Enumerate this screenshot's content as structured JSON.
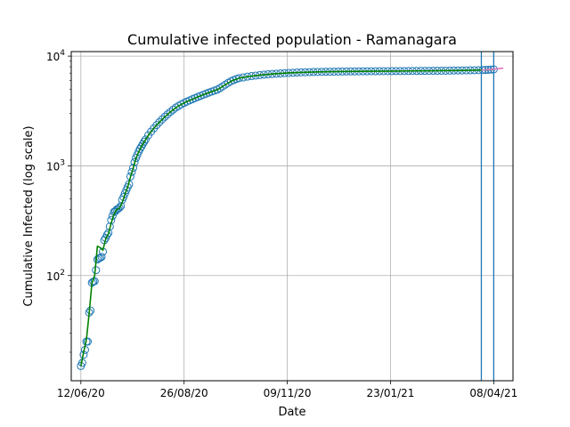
{
  "chart_data": {
    "type": "scatter",
    "title": "Cumulative infected population - Ramanagara",
    "xlabel": "Date",
    "ylabel": "Cumulative Infected (log scale)",
    "x_axis": {
      "kind": "date",
      "range": [
        "2020-06-05",
        "2021-04-22"
      ]
    },
    "y_axis": {
      "scale": "log",
      "range": [
        11,
        11000
      ]
    },
    "grid": true,
    "xticks": [
      {
        "date": "2020-06-12",
        "label": "12/06/20"
      },
      {
        "date": "2020-08-26",
        "label": "26/08/20"
      },
      {
        "date": "2020-11-09",
        "label": "09/11/20"
      },
      {
        "date": "2021-01-23",
        "label": "23/01/21"
      },
      {
        "date": "2021-04-08",
        "label": "08/04/21"
      }
    ],
    "yticks": [
      {
        "value": 100,
        "base": "10",
        "exp": "2"
      },
      {
        "value": 1000,
        "base": "10",
        "exp": "3"
      },
      {
        "value": 10000,
        "base": "10",
        "exp": "4"
      }
    ],
    "vlines": [
      {
        "date": "2021-03-30",
        "color": "#1f77b4"
      },
      {
        "date": "2021-04-08",
        "color": "#1f77b4"
      }
    ],
    "colors": {
      "observed": "#1f77b4",
      "fitted": "#008000",
      "forecast": "#e377c2"
    },
    "series": [
      {
        "role": "observed",
        "mark": "hollow-circle",
        "points": [
          [
            "2020-06-12",
            15
          ],
          [
            "2020-06-13",
            16
          ],
          [
            "2020-06-14",
            19
          ],
          [
            "2020-06-15",
            21
          ],
          [
            "2020-06-16",
            25
          ],
          [
            "2020-06-17",
            25
          ],
          [
            "2020-06-18",
            46
          ],
          [
            "2020-06-19",
            48
          ],
          [
            "2020-06-20",
            86
          ],
          [
            "2020-06-21",
            88
          ],
          [
            "2020-06-22",
            89
          ],
          [
            "2020-06-23",
            112
          ],
          [
            "2020-06-24",
            140
          ],
          [
            "2020-06-25",
            143
          ],
          [
            "2020-06-26",
            145
          ],
          [
            "2020-06-27",
            148
          ],
          [
            "2020-06-28",
            165
          ],
          [
            "2020-06-29",
            210
          ],
          [
            "2020-06-30",
            220
          ],
          [
            "2020-07-01",
            235
          ],
          [
            "2020-07-02",
            245
          ],
          [
            "2020-07-03",
            280
          ],
          [
            "2020-07-04",
            320
          ],
          [
            "2020-07-05",
            350
          ],
          [
            "2020-07-06",
            380
          ],
          [
            "2020-07-07",
            385
          ],
          [
            "2020-07-08",
            400
          ],
          [
            "2020-07-09",
            405
          ],
          [
            "2020-07-10",
            415
          ],
          [
            "2020-07-11",
            430
          ],
          [
            "2020-07-12",
            490
          ],
          [
            "2020-07-13",
            520
          ],
          [
            "2020-07-14",
            560
          ],
          [
            "2020-07-15",
            600
          ],
          [
            "2020-07-16",
            640
          ],
          [
            "2020-07-17",
            680
          ],
          [
            "2020-07-18",
            800
          ],
          [
            "2020-07-19",
            880
          ],
          [
            "2020-07-20",
            960
          ],
          [
            "2020-07-21",
            1080
          ],
          [
            "2020-07-22",
            1180
          ],
          [
            "2020-07-23",
            1260
          ],
          [
            "2020-07-24",
            1350
          ],
          [
            "2020-07-25",
            1430
          ],
          [
            "2020-07-26",
            1500
          ],
          [
            "2020-07-27",
            1580
          ],
          [
            "2020-07-28",
            1660
          ],
          [
            "2020-07-29",
            1740
          ],
          [
            "2020-07-31",
            1900
          ],
          [
            "2020-08-02",
            2050
          ],
          [
            "2020-08-04",
            2200
          ],
          [
            "2020-08-06",
            2350
          ],
          [
            "2020-08-08",
            2500
          ],
          [
            "2020-08-10",
            2650
          ],
          [
            "2020-08-12",
            2800
          ],
          [
            "2020-08-14",
            2950
          ],
          [
            "2020-08-16",
            3100
          ],
          [
            "2020-08-18",
            3250
          ],
          [
            "2020-08-20",
            3400
          ],
          [
            "2020-08-22",
            3520
          ],
          [
            "2020-08-24",
            3640
          ],
          [
            "2020-08-26",
            3750
          ],
          [
            "2020-08-28",
            3850
          ],
          [
            "2020-08-30",
            3950
          ],
          [
            "2020-09-01",
            4050
          ],
          [
            "2020-09-03",
            4150
          ],
          [
            "2020-09-05",
            4250
          ],
          [
            "2020-09-07",
            4350
          ],
          [
            "2020-09-09",
            4450
          ],
          [
            "2020-09-11",
            4550
          ],
          [
            "2020-09-13",
            4650
          ],
          [
            "2020-09-15",
            4750
          ],
          [
            "2020-09-17",
            4850
          ],
          [
            "2020-09-19",
            4950
          ],
          [
            "2020-09-21",
            5100
          ],
          [
            "2020-09-23",
            5300
          ],
          [
            "2020-09-25",
            5500
          ],
          [
            "2020-09-27",
            5700
          ],
          [
            "2020-09-29",
            5900
          ],
          [
            "2020-10-01",
            6050
          ],
          [
            "2020-10-03",
            6200
          ],
          [
            "2020-10-05",
            6300
          ],
          [
            "2020-10-08",
            6400
          ],
          [
            "2020-10-11",
            6500
          ],
          [
            "2020-10-14",
            6580
          ],
          [
            "2020-10-17",
            6650
          ],
          [
            "2020-10-20",
            6720
          ],
          [
            "2020-10-23",
            6780
          ],
          [
            "2020-10-26",
            6830
          ],
          [
            "2020-10-29",
            6880
          ],
          [
            "2020-11-01",
            6920
          ],
          [
            "2020-11-04",
            6960
          ],
          [
            "2020-11-07",
            7000
          ],
          [
            "2020-11-10",
            7030
          ],
          [
            "2020-11-13",
            7060
          ],
          [
            "2020-11-16",
            7090
          ],
          [
            "2020-11-19",
            7110
          ],
          [
            "2020-11-22",
            7130
          ],
          [
            "2020-11-25",
            7150
          ],
          [
            "2020-11-28",
            7170
          ],
          [
            "2020-12-01",
            7180
          ],
          [
            "2020-12-04",
            7195
          ],
          [
            "2020-12-07",
            7205
          ],
          [
            "2020-12-10",
            7215
          ],
          [
            "2020-12-13",
            7225
          ],
          [
            "2020-12-16",
            7235
          ],
          [
            "2020-12-19",
            7240
          ],
          [
            "2020-12-22",
            7250
          ],
          [
            "2020-12-25",
            7255
          ],
          [
            "2020-12-28",
            7260
          ],
          [
            "2020-12-31",
            7265
          ],
          [
            "2021-01-03",
            7270
          ],
          [
            "2021-01-06",
            7275
          ],
          [
            "2021-01-09",
            7280
          ],
          [
            "2021-01-12",
            7285
          ],
          [
            "2021-01-15",
            7290
          ],
          [
            "2021-01-18",
            7295
          ],
          [
            "2021-01-21",
            7300
          ],
          [
            "2021-01-24",
            7305
          ],
          [
            "2021-01-27",
            7310
          ],
          [
            "2021-01-30",
            7315
          ],
          [
            "2021-02-02",
            7320
          ],
          [
            "2021-02-05",
            7325
          ],
          [
            "2021-02-08",
            7330
          ],
          [
            "2021-02-11",
            7335
          ],
          [
            "2021-02-14",
            7340
          ],
          [
            "2021-02-17",
            7345
          ],
          [
            "2021-02-20",
            7350
          ],
          [
            "2021-02-23",
            7355
          ],
          [
            "2021-02-26",
            7360
          ],
          [
            "2021-03-01",
            7365
          ],
          [
            "2021-03-04",
            7370
          ],
          [
            "2021-03-07",
            7380
          ],
          [
            "2021-03-10",
            7390
          ],
          [
            "2021-03-13",
            7400
          ],
          [
            "2021-03-16",
            7410
          ],
          [
            "2021-03-19",
            7420
          ],
          [
            "2021-03-22",
            7430
          ],
          [
            "2021-03-25",
            7440
          ],
          [
            "2021-03-28",
            7450
          ],
          [
            "2021-03-31",
            7470
          ],
          [
            "2021-04-02",
            7490
          ],
          [
            "2021-04-04",
            7510
          ],
          [
            "2021-04-06",
            7540
          ],
          [
            "2021-04-08",
            7580
          ]
        ]
      },
      {
        "role": "fitted",
        "mark": "line",
        "points": [
          [
            "2020-06-12",
            15
          ],
          [
            "2020-06-14",
            20
          ],
          [
            "2020-06-16",
            26
          ],
          [
            "2020-06-18",
            45
          ],
          [
            "2020-06-20",
            85
          ],
          [
            "2020-06-22",
            100
          ],
          [
            "2020-06-24",
            185
          ],
          [
            "2020-06-26",
            180
          ],
          [
            "2020-06-28",
            170
          ],
          [
            "2020-06-30",
            215
          ],
          [
            "2020-07-02",
            240
          ],
          [
            "2020-07-04",
            300
          ],
          [
            "2020-07-06",
            360
          ],
          [
            "2020-07-08",
            400
          ],
          [
            "2020-07-10",
            410
          ],
          [
            "2020-07-12",
            460
          ],
          [
            "2020-07-14",
            550
          ],
          [
            "2020-07-16",
            640
          ],
          [
            "2020-07-18",
            790
          ],
          [
            "2020-07-20",
            950
          ],
          [
            "2020-07-22",
            1170
          ],
          [
            "2020-07-24",
            1340
          ],
          [
            "2020-07-27",
            1580
          ],
          [
            "2020-08-01",
            1980
          ],
          [
            "2020-08-06",
            2350
          ],
          [
            "2020-08-11",
            2720
          ],
          [
            "2020-08-16",
            3100
          ],
          [
            "2020-08-21",
            3460
          ],
          [
            "2020-08-26",
            3750
          ],
          [
            "2020-08-31",
            4000
          ],
          [
            "2020-09-05",
            4250
          ],
          [
            "2020-09-10",
            4500
          ],
          [
            "2020-09-15",
            4750
          ],
          [
            "2020-09-20",
            5000
          ],
          [
            "2020-09-25",
            5500
          ],
          [
            "2020-09-30",
            5980
          ],
          [
            "2020-10-05",
            6300
          ],
          [
            "2020-10-12",
            6520
          ],
          [
            "2020-10-20",
            6720
          ],
          [
            "2020-10-30",
            6890
          ],
          [
            "2020-11-10",
            7030
          ],
          [
            "2020-11-25",
            7150
          ],
          [
            "2020-12-10",
            7215
          ],
          [
            "2020-12-25",
            7255
          ],
          [
            "2021-01-09",
            7280
          ],
          [
            "2021-01-24",
            7305
          ],
          [
            "2021-02-08",
            7330
          ],
          [
            "2021-02-23",
            7355
          ],
          [
            "2021-03-10",
            7390
          ],
          [
            "2021-03-25",
            7440
          ],
          [
            "2021-04-02",
            7490
          ],
          [
            "2021-04-08",
            7580
          ]
        ]
      },
      {
        "role": "forecast",
        "mark": "line",
        "points": [
          [
            "2021-03-30",
            7450
          ],
          [
            "2021-04-03",
            7520
          ],
          [
            "2021-04-06",
            7570
          ],
          [
            "2021-04-09",
            7630
          ],
          [
            "2021-04-12",
            7700
          ],
          [
            "2021-04-15",
            7780
          ]
        ]
      }
    ]
  }
}
